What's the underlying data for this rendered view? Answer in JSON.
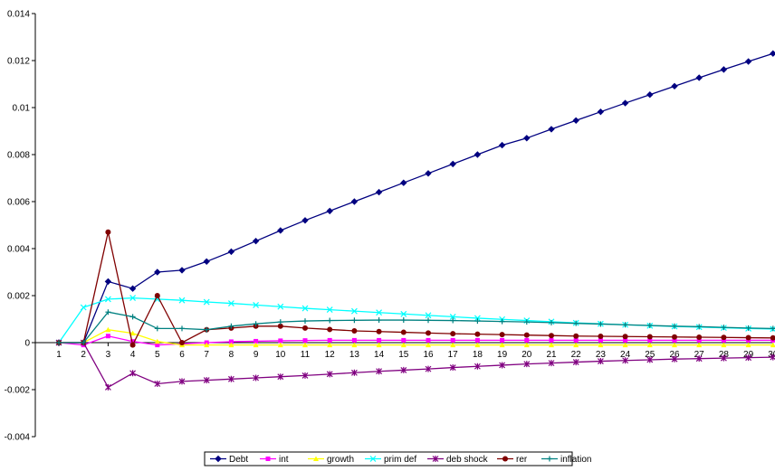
{
  "chart_data": {
    "type": "line",
    "title": "",
    "xlabel": "",
    "ylabel": "",
    "x": [
      1,
      2,
      3,
      4,
      5,
      6,
      7,
      8,
      9,
      10,
      11,
      12,
      13,
      14,
      15,
      16,
      17,
      18,
      19,
      20,
      21,
      22,
      23,
      24,
      25,
      26,
      27,
      28,
      29,
      30
    ],
    "x_tick_labels": [
      "1",
      "2",
      "3",
      "4",
      "5",
      "6",
      "7",
      "8",
      "9",
      "10",
      "11",
      "12",
      "13",
      "14",
      "15",
      "16",
      "17",
      "18",
      "19",
      "20",
      "21",
      "22",
      "23",
      "24",
      "25",
      "26",
      "27",
      "28",
      "29",
      "30"
    ],
    "ylim": [
      -0.004,
      0.014
    ],
    "y_ticks": [
      -0.004,
      -0.002,
      0,
      0.002,
      0.004,
      0.006,
      0.008,
      0.01,
      0.012,
      0.014
    ],
    "y_tick_labels": [
      "-0.004",
      "-0.002",
      "0",
      "0.002",
      "0.004",
      "0.006",
      "0.008",
      "0.01",
      "0.012",
      "0.014"
    ],
    "grid": false,
    "legend_position": "bottom-center",
    "series": [
      {
        "name": "Debt",
        "color": "#000080",
        "marker": "diamond",
        "values": [
          0,
          0,
          0.0026,
          0.0023,
          0.003,
          0.00308,
          0.00345,
          0.00387,
          0.00432,
          0.00477,
          0.0052,
          0.0056,
          0.006,
          0.0064,
          0.0068,
          0.0072,
          0.0076,
          0.008,
          0.0084,
          0.0087,
          0.00908,
          0.00945,
          0.00982,
          0.01019,
          0.01055,
          0.01091,
          0.01127,
          0.01162,
          0.01196,
          0.0123
        ]
      },
      {
        "name": "int",
        "color": "#FF00FF",
        "marker": "square",
        "values": [
          0,
          -0.0001,
          0.00028,
          5e-05,
          -0.0001,
          -5e-05,
          0,
          4e-05,
          6e-05,
          8e-05,
          9e-05,
          0.0001,
          0.0001,
          0.0001,
          0.0001,
          0.0001,
          0.0001,
          0.0001,
          0.0001,
          0.0001,
          0.0001,
          0.0001,
          0.0001,
          0.0001,
          0.0001,
          0.0001,
          0.0001,
          0.0001,
          0.0001,
          0.0001
        ]
      },
      {
        "name": "growth",
        "color": "#FFFF00",
        "marker": "triangle",
        "values": [
          0,
          0,
          0.00055,
          0.0004,
          5e-05,
          -0.0001,
          -0.0001,
          -0.0001,
          -0.0001,
          -0.0001,
          -0.0001,
          -0.0001,
          -0.0001,
          -0.0001,
          -0.0001,
          -0.0001,
          -0.0001,
          -0.0001,
          -0.0001,
          -0.0001,
          -0.0001,
          -0.0001,
          -0.0001,
          -0.0001,
          -0.0001,
          -0.0001,
          -0.0001,
          -0.0001,
          -0.0001,
          -0.0001
        ]
      },
      {
        "name": "prim def",
        "color": "#00FFFF",
        "marker": "x",
        "values": [
          0,
          0.0015,
          0.00185,
          0.0019,
          0.00185,
          0.0018,
          0.00173,
          0.00167,
          0.0016,
          0.00153,
          0.00146,
          0.0014,
          0.00134,
          0.00128,
          0.00122,
          0.00116,
          0.0011,
          0.00104,
          0.00099,
          0.00094,
          0.00089,
          0.00084,
          0.0008,
          0.00076,
          0.00072,
          0.00069,
          0.00066,
          0.00063,
          0.0006,
          0.00058
        ]
      },
      {
        "name": "deb shock",
        "color": "#800080",
        "marker": "star",
        "values": [
          0,
          0,
          -0.0019,
          -0.0013,
          -0.00175,
          -0.00165,
          -0.0016,
          -0.00155,
          -0.0015,
          -0.00145,
          -0.0014,
          -0.00134,
          -0.00128,
          -0.00122,
          -0.00117,
          -0.00112,
          -0.00106,
          -0.00101,
          -0.00096,
          -0.00091,
          -0.00087,
          -0.00083,
          -0.00079,
          -0.00076,
          -0.00073,
          -0.0007,
          -0.00068,
          -0.00066,
          -0.00064,
          -0.00062
        ]
      },
      {
        "name": "rer",
        "color": "#800000",
        "marker": "circle",
        "values": [
          0,
          0,
          0.0047,
          -0.0001,
          0.002,
          0,
          0.00055,
          0.00062,
          0.0007,
          0.0007,
          0.00062,
          0.00056,
          0.0005,
          0.00047,
          0.00044,
          0.00041,
          0.00038,
          0.00036,
          0.00034,
          0.00032,
          0.0003,
          0.00028,
          0.00027,
          0.00026,
          0.00025,
          0.00024,
          0.00023,
          0.00022,
          0.00021,
          0.0002
        ]
      },
      {
        "name": "inflation",
        "color": "#008080",
        "marker": "plus",
        "values": [
          0,
          0,
          0.0013,
          0.0011,
          0.0006,
          0.0006,
          0.00055,
          0.0007,
          0.0008,
          0.00088,
          0.00092,
          0.00094,
          0.00095,
          0.00096,
          0.00096,
          0.00095,
          0.00094,
          0.00092,
          0.0009,
          0.00088,
          0.00085,
          0.00082,
          0.00079,
          0.00076,
          0.00073,
          0.0007,
          0.00068,
          0.00065,
          0.00062,
          0.0006
        ]
      }
    ]
  }
}
